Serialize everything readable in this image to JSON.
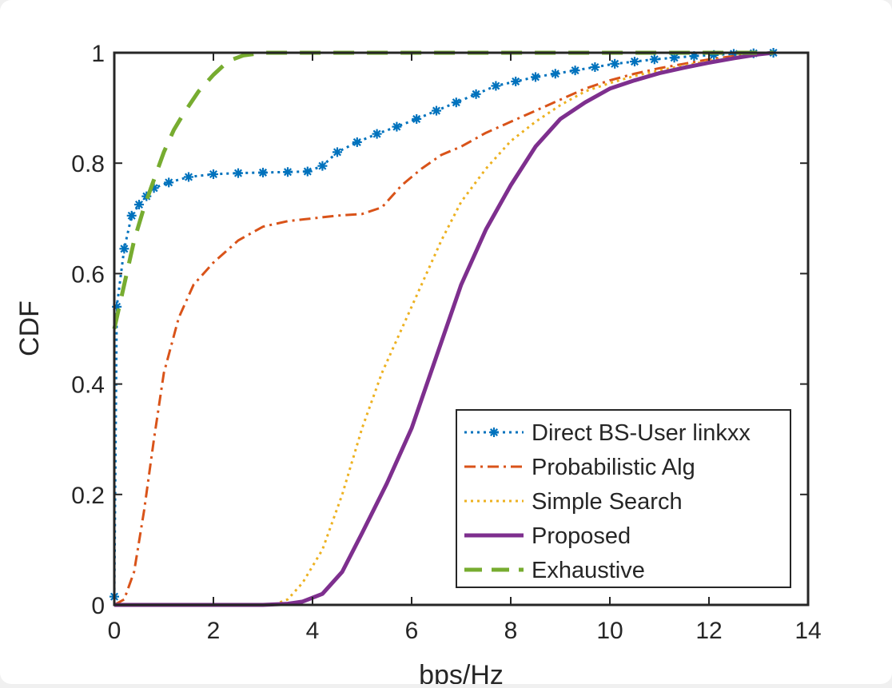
{
  "chart_data": {
    "type": "line",
    "xlabel": "bps/Hz",
    "ylabel": "CDF",
    "xlim": [
      0,
      14
    ],
    "ylim": [
      0,
      1
    ],
    "xticks": [
      "0",
      "2",
      "4",
      "6",
      "8",
      "10",
      "12",
      "14"
    ],
    "yticks": [
      "0",
      "0.2",
      "0.4",
      "0.6",
      "0.8",
      "1"
    ],
    "grid": false,
    "legend_position": "bottom-right",
    "series": [
      {
        "name": "Direct BS-User linkxx",
        "color": "#0072bd",
        "style": "dotted-star",
        "points": [
          [
            0,
            0.015
          ],
          [
            0.05,
            0.54
          ],
          [
            0.2,
            0.645
          ],
          [
            0.35,
            0.705
          ],
          [
            0.5,
            0.725
          ],
          [
            0.65,
            0.74
          ],
          [
            0.8,
            0.755
          ],
          [
            1.1,
            0.765
          ],
          [
            1.5,
            0.775
          ],
          [
            2.0,
            0.78
          ],
          [
            2.5,
            0.782
          ],
          [
            3.0,
            0.783
          ],
          [
            3.5,
            0.784
          ],
          [
            3.9,
            0.785
          ],
          [
            4.2,
            0.795
          ],
          [
            4.5,
            0.82
          ],
          [
            4.9,
            0.838
          ],
          [
            5.3,
            0.853
          ],
          [
            5.7,
            0.866
          ],
          [
            6.1,
            0.88
          ],
          [
            6.5,
            0.895
          ],
          [
            6.9,
            0.91
          ],
          [
            7.3,
            0.925
          ],
          [
            7.7,
            0.94
          ],
          [
            8.1,
            0.948
          ],
          [
            8.5,
            0.956
          ],
          [
            8.9,
            0.962
          ],
          [
            9.3,
            0.968
          ],
          [
            9.7,
            0.974
          ],
          [
            10.1,
            0.98
          ],
          [
            10.5,
            0.984
          ],
          [
            10.9,
            0.988
          ],
          [
            11.3,
            0.991
          ],
          [
            11.7,
            0.994
          ],
          [
            12.1,
            0.996
          ],
          [
            12.5,
            0.998
          ],
          [
            12.9,
            0.999
          ],
          [
            13.3,
            1.0
          ]
        ]
      },
      {
        "name": "Probabilistic Alg",
        "color": "#d95319",
        "style": "dash-dot",
        "points": [
          [
            0,
            0
          ],
          [
            0.2,
            0.01
          ],
          [
            0.4,
            0.06
          ],
          [
            0.6,
            0.17
          ],
          [
            0.8,
            0.3
          ],
          [
            1.0,
            0.42
          ],
          [
            1.3,
            0.52
          ],
          [
            1.6,
            0.58
          ],
          [
            2.0,
            0.62
          ],
          [
            2.5,
            0.66
          ],
          [
            3.0,
            0.685
          ],
          [
            3.5,
            0.695
          ],
          [
            4.0,
            0.7
          ],
          [
            4.5,
            0.705
          ],
          [
            5.0,
            0.708
          ],
          [
            5.4,
            0.72
          ],
          [
            5.8,
            0.76
          ],
          [
            6.2,
            0.79
          ],
          [
            6.6,
            0.815
          ],
          [
            7.0,
            0.83
          ],
          [
            7.5,
            0.855
          ],
          [
            8.0,
            0.875
          ],
          [
            8.5,
            0.895
          ],
          [
            9.0,
            0.915
          ],
          [
            9.5,
            0.935
          ],
          [
            10.0,
            0.95
          ],
          [
            10.5,
            0.962
          ],
          [
            11.0,
            0.972
          ],
          [
            11.5,
            0.98
          ],
          [
            12.0,
            0.988
          ],
          [
            12.5,
            0.994
          ],
          [
            13.0,
            0.998
          ],
          [
            13.3,
            1.0
          ]
        ]
      },
      {
        "name": "Simple Search",
        "color": "#edb120",
        "style": "dotted",
        "points": [
          [
            0,
            0
          ],
          [
            3.2,
            0
          ],
          [
            3.5,
            0.01
          ],
          [
            3.8,
            0.04
          ],
          [
            4.2,
            0.1
          ],
          [
            4.6,
            0.2
          ],
          [
            5.0,
            0.32
          ],
          [
            5.4,
            0.42
          ],
          [
            5.8,
            0.5
          ],
          [
            6.2,
            0.58
          ],
          [
            6.6,
            0.66
          ],
          [
            7.0,
            0.73
          ],
          [
            7.5,
            0.79
          ],
          [
            8.0,
            0.84
          ],
          [
            8.5,
            0.875
          ],
          [
            9.0,
            0.905
          ],
          [
            9.5,
            0.93
          ],
          [
            10.0,
            0.945
          ],
          [
            10.5,
            0.958
          ],
          [
            11.0,
            0.968
          ],
          [
            11.5,
            0.977
          ],
          [
            12.0,
            0.985
          ],
          [
            12.5,
            0.992
          ],
          [
            13.0,
            0.997
          ],
          [
            13.3,
            1.0
          ]
        ]
      },
      {
        "name": "Proposed",
        "color": "#7e2f8e",
        "style": "solid",
        "points": [
          [
            0,
            0
          ],
          [
            3.0,
            0
          ],
          [
            3.5,
            0.002
          ],
          [
            3.8,
            0.006
          ],
          [
            4.2,
            0.02
          ],
          [
            4.6,
            0.06
          ],
          [
            5.0,
            0.13
          ],
          [
            5.5,
            0.22
          ],
          [
            6.0,
            0.32
          ],
          [
            6.5,
            0.45
          ],
          [
            7.0,
            0.58
          ],
          [
            7.5,
            0.68
          ],
          [
            8.0,
            0.76
          ],
          [
            8.5,
            0.83
          ],
          [
            9.0,
            0.88
          ],
          [
            9.5,
            0.91
          ],
          [
            10.0,
            0.935
          ],
          [
            10.5,
            0.95
          ],
          [
            11.0,
            0.963
          ],
          [
            11.5,
            0.973
          ],
          [
            12.0,
            0.982
          ],
          [
            12.5,
            0.99
          ],
          [
            13.0,
            0.997
          ],
          [
            13.3,
            1.0
          ]
        ]
      },
      {
        "name": "Exhaustive",
        "color": "#77ac30",
        "style": "dashed",
        "points": [
          [
            0,
            0.5
          ],
          [
            0.2,
            0.58
          ],
          [
            0.4,
            0.66
          ],
          [
            0.6,
            0.72
          ],
          [
            0.8,
            0.77
          ],
          [
            1.0,
            0.82
          ],
          [
            1.2,
            0.86
          ],
          [
            1.4,
            0.89
          ],
          [
            1.7,
            0.93
          ],
          [
            2.0,
            0.96
          ],
          [
            2.3,
            0.985
          ],
          [
            2.6,
            0.995
          ],
          [
            3.0,
            1.0
          ],
          [
            6.0,
            1.0
          ],
          [
            9.0,
            1.0
          ],
          [
            13.3,
            1.0
          ]
        ]
      }
    ]
  }
}
